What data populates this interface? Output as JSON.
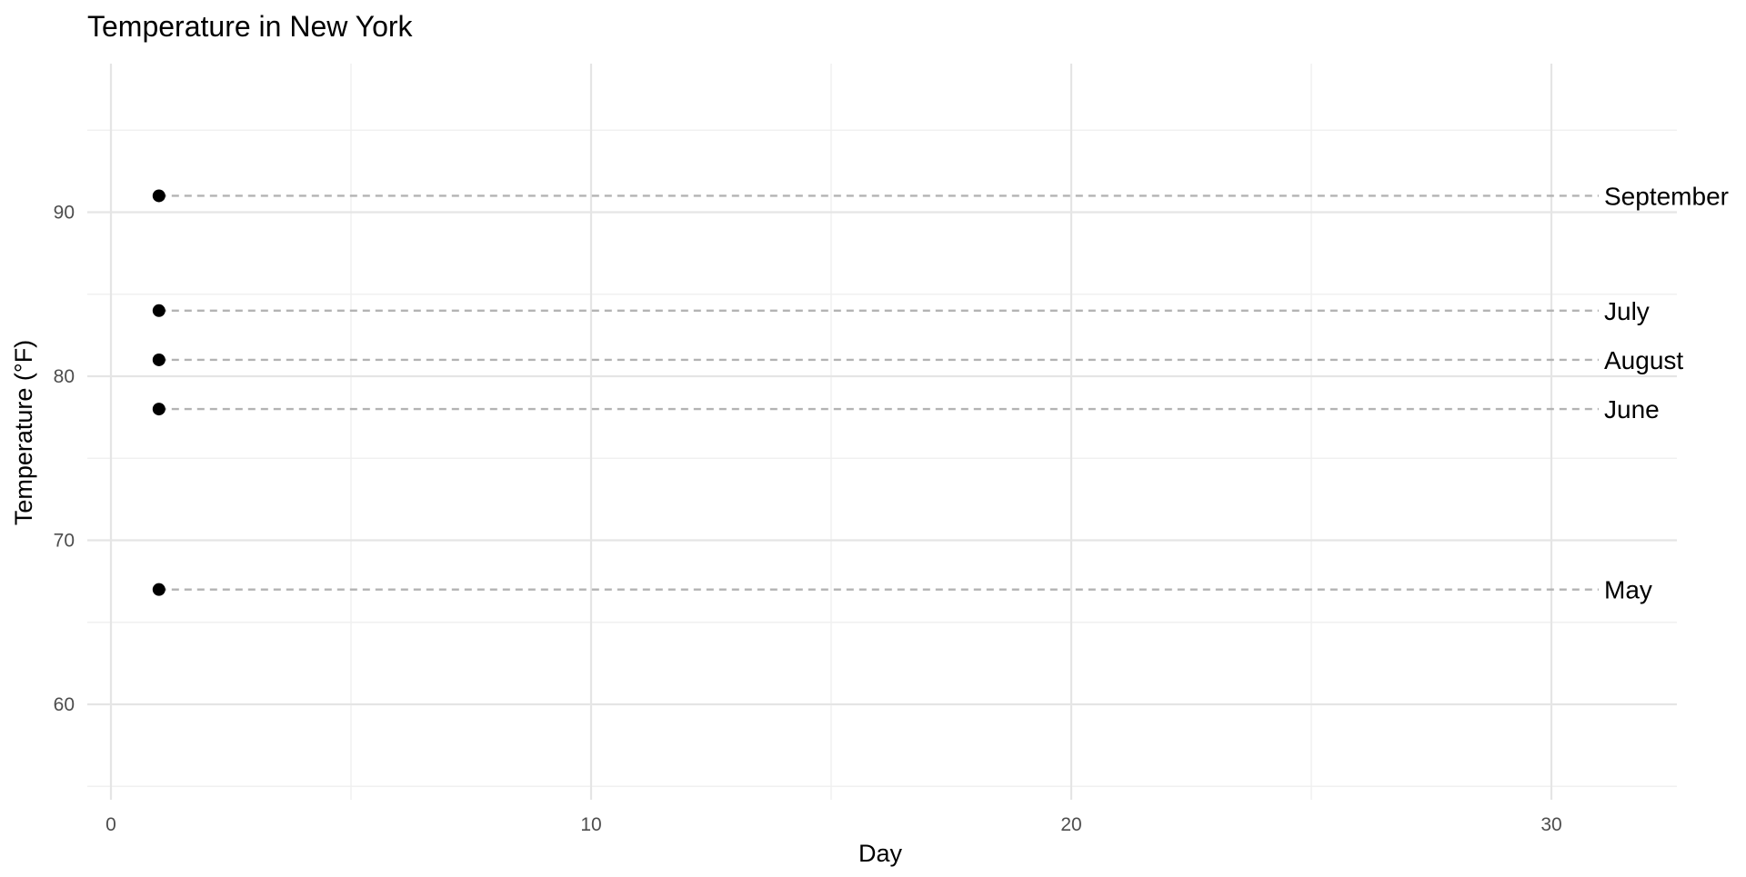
{
  "chart_data": {
    "type": "scatter",
    "title": "Temperature in New York",
    "xlabel": "Day",
    "ylabel": "Temperature (°F)",
    "xlim": [
      0,
      33
    ],
    "ylim": [
      55,
      97
    ],
    "x_ticks": [
      0,
      10,
      20,
      30
    ],
    "x_minor_ticks": [
      5,
      15,
      25
    ],
    "y_ticks": [
      60,
      70,
      80,
      90
    ],
    "y_minor_ticks": [
      55,
      65,
      75,
      85,
      95
    ],
    "grid": true,
    "reference_lines": "dashed horizontal line from each point to the right edge",
    "series": [
      {
        "name": "May",
        "x": 1,
        "y": 67
      },
      {
        "name": "June",
        "x": 1,
        "y": 78
      },
      {
        "name": "July",
        "x": 1,
        "y": 84
      },
      {
        "name": "August",
        "x": 1,
        "y": 81
      },
      {
        "name": "September",
        "x": 1,
        "y": 91
      }
    ]
  },
  "colors": {
    "background": "#ffffff",
    "point": "#000000",
    "reference_line": "#b3b3b3",
    "grid": "#e5e5e5",
    "tick_label": "#4d4d4d"
  }
}
